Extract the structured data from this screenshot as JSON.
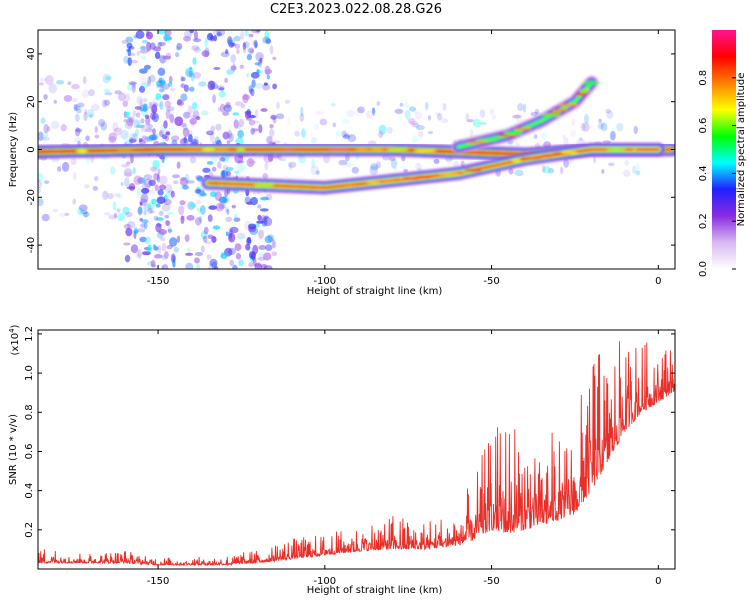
{
  "title": "C2E3.2023.022.08.28.G26",
  "chart_data": [
    {
      "type": "heatmap",
      "name": "spectrogram",
      "xlabel": "Height of straight line (km)",
      "ylabel": "Frequency (Hz)",
      "xlim": [
        -186,
        5
      ],
      "ylim": [
        -50,
        50
      ],
      "x_ticks": [
        -150,
        -100,
        -50,
        0
      ],
      "y_ticks": [
        -40,
        -20,
        0,
        20,
        40
      ],
      "colorbar": {
        "label": "Normalized spectral amplitude",
        "range": [
          0,
          1
        ],
        "ticks": [
          "0.0",
          "0.2",
          "0.4",
          "0.6",
          "0.8"
        ],
        "colormap": [
          "#ffffff",
          "#d8b8f0",
          "#8a2be2",
          "#2020ff",
          "#00ffff",
          "#00ff00",
          "#ffff00",
          "#ff8000",
          "#ff0000",
          "#ff1493"
        ]
      },
      "ridges": [
        {
          "label": "zero-frequency line",
          "points": [
            [
              -186,
              -1
            ],
            [
              -150,
              0
            ],
            [
              -120,
              0
            ],
            [
              -80,
              0
            ],
            [
              -40,
              -2
            ],
            [
              -20,
              0
            ],
            [
              4,
              0
            ]
          ],
          "peak": 0.9
        },
        {
          "label": "descending branch",
          "points": [
            [
              -135,
              -14
            ],
            [
              -100,
              -16
            ],
            [
              -80,
              -13
            ],
            [
              -60,
              -10
            ],
            [
              -40,
              -4
            ],
            [
              -20,
              0
            ],
            [
              0,
              0
            ]
          ],
          "peak": 0.85
        },
        {
          "label": "rising branch",
          "points": [
            [
              -60,
              1
            ],
            [
              -45,
              6
            ],
            [
              -35,
              12
            ],
            [
              -25,
              20
            ],
            [
              -20,
              28
            ]
          ],
          "peak": 0.6
        }
      ]
    },
    {
      "type": "line",
      "name": "snr",
      "xlabel": "Height of straight line (km)",
      "ylabel": "SNR (10 * v/v)",
      "scale_note": "(x10",
      "scale_exp": "4",
      "xlim": [
        -186,
        5
      ],
      "ylim": [
        0,
        1.22
      ],
      "x_ticks": [
        -150,
        -100,
        -50,
        0
      ],
      "y_ticks": [
        "0.2",
        "0.4",
        "0.6",
        "0.8",
        "1.0",
        "1.2"
      ],
      "color": "#e8302a",
      "envelope": {
        "x": [
          -186,
          -170,
          -160,
          -150,
          -140,
          -130,
          -120,
          -110,
          -100,
          -90,
          -80,
          -70,
          -60,
          -55,
          -50,
          -45,
          -40,
          -35,
          -30,
          -25,
          -20,
          -15,
          -10,
          -5,
          0,
          4
        ],
        "baseline": [
          0.03,
          0.03,
          0.03,
          0.02,
          0.02,
          0.02,
          0.03,
          0.05,
          0.07,
          0.09,
          0.1,
          0.1,
          0.12,
          0.15,
          0.2,
          0.18,
          0.2,
          0.22,
          0.25,
          0.28,
          0.4,
          0.55,
          0.7,
          0.8,
          0.85,
          0.9
        ],
        "peak": [
          0.12,
          0.08,
          0.1,
          0.06,
          0.06,
          0.07,
          0.1,
          0.16,
          0.18,
          0.22,
          0.28,
          0.25,
          0.3,
          0.5,
          0.7,
          0.8,
          0.75,
          0.72,
          0.7,
          0.75,
          1.18,
          1.05,
          1.22,
          1.15,
          1.2,
          1.15
        ]
      }
    }
  ]
}
